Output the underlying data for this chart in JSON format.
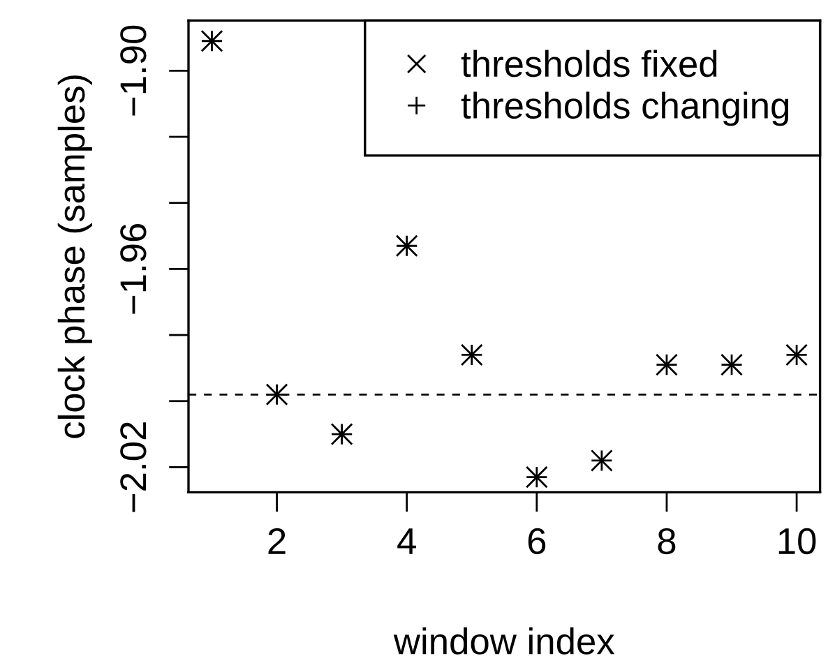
{
  "chart_data": {
    "type": "scatter",
    "xlabel": "window index",
    "ylabel": "clock phase (samples)",
    "x": [
      1,
      2,
      3,
      4,
      5,
      6,
      7,
      8,
      9,
      10
    ],
    "series": [
      {
        "name": "thresholds fixed",
        "color": "#000000",
        "marker": "cross",
        "values": [
          -1.891,
          -1.998,
          -2.01,
          -1.953,
          -1.986,
          -2.023,
          -2.018,
          -1.989,
          -1.989,
          -1.986
        ]
      },
      {
        "name": "thresholds changing",
        "color": "#000000",
        "marker": "plus",
        "values": [
          -1.891,
          -1.998,
          -2.01,
          -1.953,
          -1.986,
          -2.023,
          -2.018,
          -1.989,
          -1.989,
          -1.986
        ]
      }
    ],
    "xlim": [
      0.64,
      10.36
    ],
    "xticks": [
      2,
      4,
      6,
      8,
      10
    ],
    "ylim": [
      -2.0276,
      -1.8848
    ],
    "yticks": [
      {
        "value": -1.9,
        "label": "−1.90"
      },
      {
        "value": -1.92,
        "label": null
      },
      {
        "value": -1.94,
        "label": null
      },
      {
        "value": -1.96,
        "label": "−1.96"
      },
      {
        "value": -1.98,
        "label": null
      },
      {
        "value": -2.0,
        "label": null
      },
      {
        "value": -2.02,
        "label": "−2.02"
      }
    ],
    "ref_lines": [
      {
        "axis": "y",
        "value": -1.998,
        "label": null,
        "color": "#000000",
        "line_style": "dashed"
      }
    ],
    "legend": "top right",
    "grid": false
  }
}
